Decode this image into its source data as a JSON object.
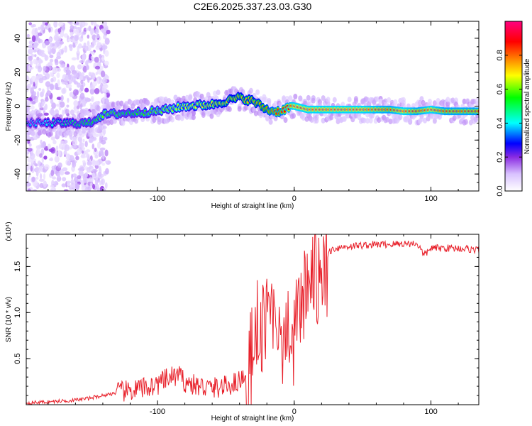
{
  "title": "C2E6.2025.337.23.03.G30",
  "chart_data": [
    {
      "type": "heatmap",
      "xlabel": "Height of straight line (km)",
      "ylabel": "Frequency (Hz)",
      "xlim": [
        -196,
        135
      ],
      "ylim": [
        -50,
        50
      ],
      "xticks": [
        -100,
        0,
        100
      ],
      "xtick_labels": [
        "-100",
        "0",
        "100"
      ],
      "yticks": [
        -40,
        -20,
        0,
        20,
        40
      ],
      "ytick_labels": [
        "-40",
        "-20",
        "0",
        "20",
        "40"
      ],
      "colorbar": {
        "label": "Normalized spectral amplitude",
        "range": [
          0,
          1
        ],
        "ticks": [
          0,
          0.2,
          0.4,
          0.6,
          0.8
        ],
        "tick_labels": [
          "0.0",
          "0.2",
          "0.4",
          "0.6",
          "0.8"
        ],
        "colormap": [
          "#ffffff",
          "#d9c2ff",
          "#8a2be2",
          "#0000ff",
          "#00ffff",
          "#00ff00",
          "#ffff00",
          "#ff8000",
          "#ff0000",
          "#ff0080"
        ]
      },
      "ridge": {
        "x": [
          -196,
          -150,
          -140,
          -120,
          -100,
          -80,
          -60,
          -40,
          -30,
          -20,
          -15,
          -10,
          -5,
          0,
          10,
          30,
          50,
          70,
          80,
          90,
          100,
          110,
          135
        ],
        "freq": [
          -10,
          -10,
          -5,
          -4,
          -3,
          0,
          1,
          5,
          3,
          -2,
          -3,
          -3,
          -1,
          0,
          -2,
          -2,
          -2,
          -2,
          -3,
          -3,
          -2,
          -3,
          -3
        ],
        "amplitude": [
          0.4,
          0.55,
          0.6,
          0.55,
          0.6,
          0.65,
          0.7,
          0.75,
          0.75,
          0.8,
          0.85,
          0.85,
          0.9,
          0.95,
          0.95,
          0.95,
          0.95,
          0.9,
          0.95,
          0.9,
          0.95,
          0.9,
          0.9
        ]
      }
    },
    {
      "type": "line",
      "xlabel": "Height of straight line (km)",
      "ylabel": "SNR (10 * v/v)",
      "y_scale_label": "(x10⁴)",
      "xlim": [
        -196,
        135
      ],
      "ylim": [
        0,
        1.85
      ],
      "xticks": [
        -100,
        0,
        100
      ],
      "xtick_labels": [
        "-100",
        "0",
        "100"
      ],
      "yticks": [
        0.5,
        1.0,
        1.5
      ],
      "ytick_labels": [
        "0.5",
        "1.0",
        "1.5"
      ],
      "series": [
        {
          "name": "SNR",
          "color": "#e8202a",
          "x": [
            -196,
            -180,
            -160,
            -150,
            -140,
            -130,
            -120,
            -110,
            -100,
            -95,
            -90,
            -85,
            -80,
            -75,
            -70,
            -60,
            -50,
            -40,
            -35,
            -32,
            -30,
            -28,
            -25,
            -20,
            -18,
            -15,
            -12,
            -10,
            -8,
            -5,
            -2,
            0,
            2,
            5,
            8,
            10,
            12,
            15,
            18,
            20,
            25,
            30,
            40,
            50,
            60,
            70,
            80,
            90,
            95,
            100,
            110,
            120,
            135
          ],
          "y": [
            0.02,
            0.03,
            0.05,
            0.07,
            0.1,
            0.13,
            0.15,
            0.18,
            0.22,
            0.26,
            0.3,
            0.32,
            0.25,
            0.22,
            0.2,
            0.18,
            0.2,
            0.26,
            0.35,
            0.6,
            0.7,
            0.9,
            0.95,
            1.05,
            1.1,
            1.2,
            1.0,
            0.95,
            0.9,
            0.85,
            0.8,
            0.9,
            1.05,
            1.1,
            1.25,
            1.35,
            1.4,
            1.45,
            1.55,
            1.6,
            1.66,
            1.7,
            1.72,
            1.73,
            1.74,
            1.74,
            1.75,
            1.75,
            1.62,
            1.7,
            1.7,
            1.7,
            1.68
          ]
        }
      ]
    }
  ]
}
